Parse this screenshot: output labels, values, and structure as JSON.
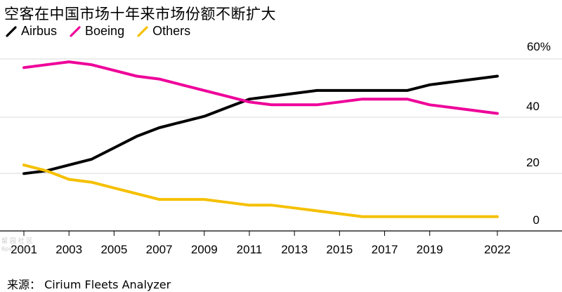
{
  "title": "空客在中国市场十年来市场份额不断扩大",
  "source": "来源： Cirium Fleets Analyzer",
  "colors": {
    "airbus": "#000000",
    "boeing": "#ee0099",
    "others": "#f5c000",
    "grid": "#d9d9d9"
  },
  "chart_data": {
    "type": "line",
    "x": [
      2001,
      2002,
      2003,
      2004,
      2005,
      2006,
      2007,
      2008,
      2009,
      2010,
      2011,
      2012,
      2013,
      2014,
      2015,
      2016,
      2017,
      2018,
      2019,
      2020,
      2021,
      2022
    ],
    "x_tick_labels": [
      "2001",
      "2003",
      "2005",
      "2007",
      "2009",
      "2011",
      "2013",
      "2015",
      "2017",
      "2019",
      "2022"
    ],
    "x_ticks": [
      2001,
      2003,
      2005,
      2007,
      2009,
      2011,
      2013,
      2015,
      2017,
      2019,
      2022
    ],
    "y_ticks": [
      0,
      20,
      40,
      60
    ],
    "y_tick_labels": [
      "0",
      "20",
      "40",
      "60%"
    ],
    "ylim": [
      0,
      60
    ],
    "series": [
      {
        "name": "Airbus",
        "color_key": "airbus",
        "values": [
          20,
          21,
          23,
          25,
          29,
          33,
          36,
          38,
          40,
          43,
          46,
          47,
          48,
          49,
          49,
          49,
          49,
          49,
          51,
          52,
          53,
          54
        ]
      },
      {
        "name": "Boeing",
        "color_key": "boeing",
        "values": [
          57,
          58,
          59,
          58,
          56,
          54,
          53,
          51,
          49,
          47,
          45,
          44,
          44,
          44,
          45,
          46,
          46,
          46,
          44,
          43,
          42,
          41
        ]
      },
      {
        "name": "Others",
        "color_key": "others",
        "values": [
          23,
          21,
          18,
          17,
          15,
          13,
          11,
          11,
          11,
          10,
          9,
          9,
          8,
          7,
          6,
          5,
          5,
          5,
          5,
          5,
          5,
          5
        ]
      }
    ]
  }
}
